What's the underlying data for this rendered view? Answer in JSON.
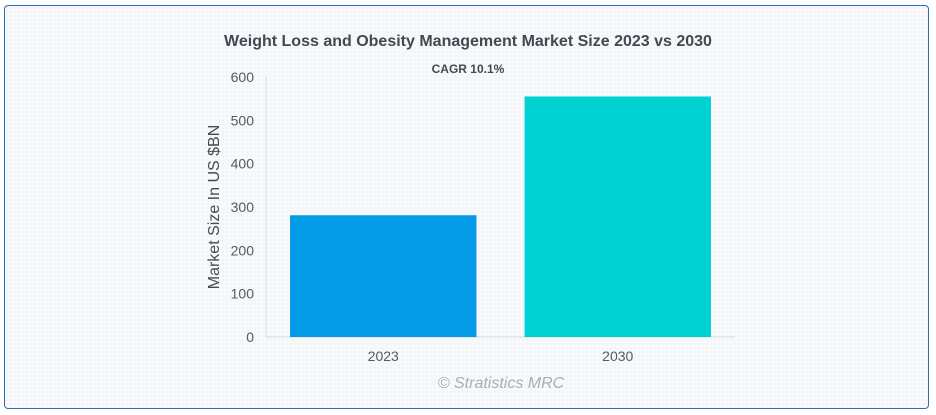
{
  "chart_data": {
    "type": "bar",
    "title": "Weight Loss and Obesity Management Market Size 2023 vs 2030",
    "subtitle": "CAGR 10.1%",
    "categories": [
      "2023",
      "2030"
    ],
    "values": [
      281,
      555
    ],
    "colors": [
      "#039be5",
      "#00d1d3"
    ],
    "xlabel": "",
    "ylabel": "Market Size In US $BN",
    "ylim": [
      0,
      600
    ],
    "yticks": [
      "0",
      "100",
      "200",
      "300",
      "400",
      "500",
      "600"
    ],
    "grid": false,
    "legend": "none"
  },
  "credit": "© Stratistics MRC"
}
